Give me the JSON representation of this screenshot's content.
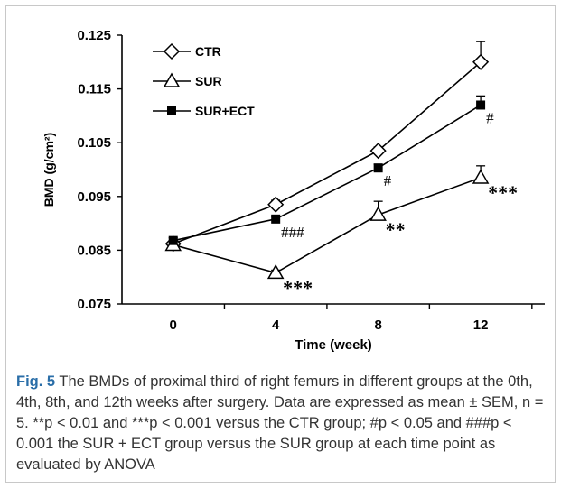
{
  "chart_data": {
    "type": "line",
    "title": "",
    "xlabel": "Time (week)",
    "ylabel": "BMD (g/cm²)",
    "x": [
      0,
      4,
      8,
      12
    ],
    "x_ticks": [
      "0",
      "4",
      "8",
      "12"
    ],
    "ylim": [
      0.075,
      0.125
    ],
    "y_ticks": [
      "0.075",
      "0.085",
      "0.095",
      "0.105",
      "0.115",
      "0.125"
    ],
    "legend_position": "top-left",
    "grid": false,
    "series": [
      {
        "name": "CTR",
        "marker": "open-diamond",
        "values": [
          0.0862,
          0.0935,
          0.1035,
          0.12
        ],
        "errors": [
          0.0005,
          0.0008,
          0.0007,
          0.0038
        ]
      },
      {
        "name": "SUR",
        "marker": "open-triangle",
        "values": [
          0.086,
          0.0808,
          0.0916,
          0.0985
        ],
        "errors": [
          0.0005,
          0.0005,
          0.0025,
          0.0022
        ]
      },
      {
        "name": "SUR+ECT",
        "marker": "filled-square",
        "values": [
          0.0868,
          0.0908,
          0.1003,
          0.112
        ],
        "errors": [
          0.0005,
          0.0005,
          0.0007,
          0.0017
        ]
      }
    ],
    "annotations": [
      {
        "text": "###",
        "series": "SUR+ECT",
        "x": 4
      },
      {
        "text": "#",
        "series": "SUR+ECT",
        "x": 8
      },
      {
        "text": "#",
        "series": "SUR+ECT",
        "x": 12
      },
      {
        "text": "***",
        "series": "SUR",
        "x": 4
      },
      {
        "text": "**",
        "series": "SUR",
        "x": 8
      },
      {
        "text": "***",
        "series": "SUR",
        "x": 12
      }
    ]
  },
  "caption": {
    "label": "Fig. 5",
    "text": " The BMDs of proximal third of right femurs in different groups at the 0th, 4th, 8th, and 12th weeks after surgery. Data are expressed as mean ± SEM, n = 5. **p < 0.01 and ***p < 0.001 versus the CTR group; #p < 0.05 and ###p < 0.001 the SUR + ECT group versus the SUR group at each time point as evaluated by ANOVA"
  }
}
